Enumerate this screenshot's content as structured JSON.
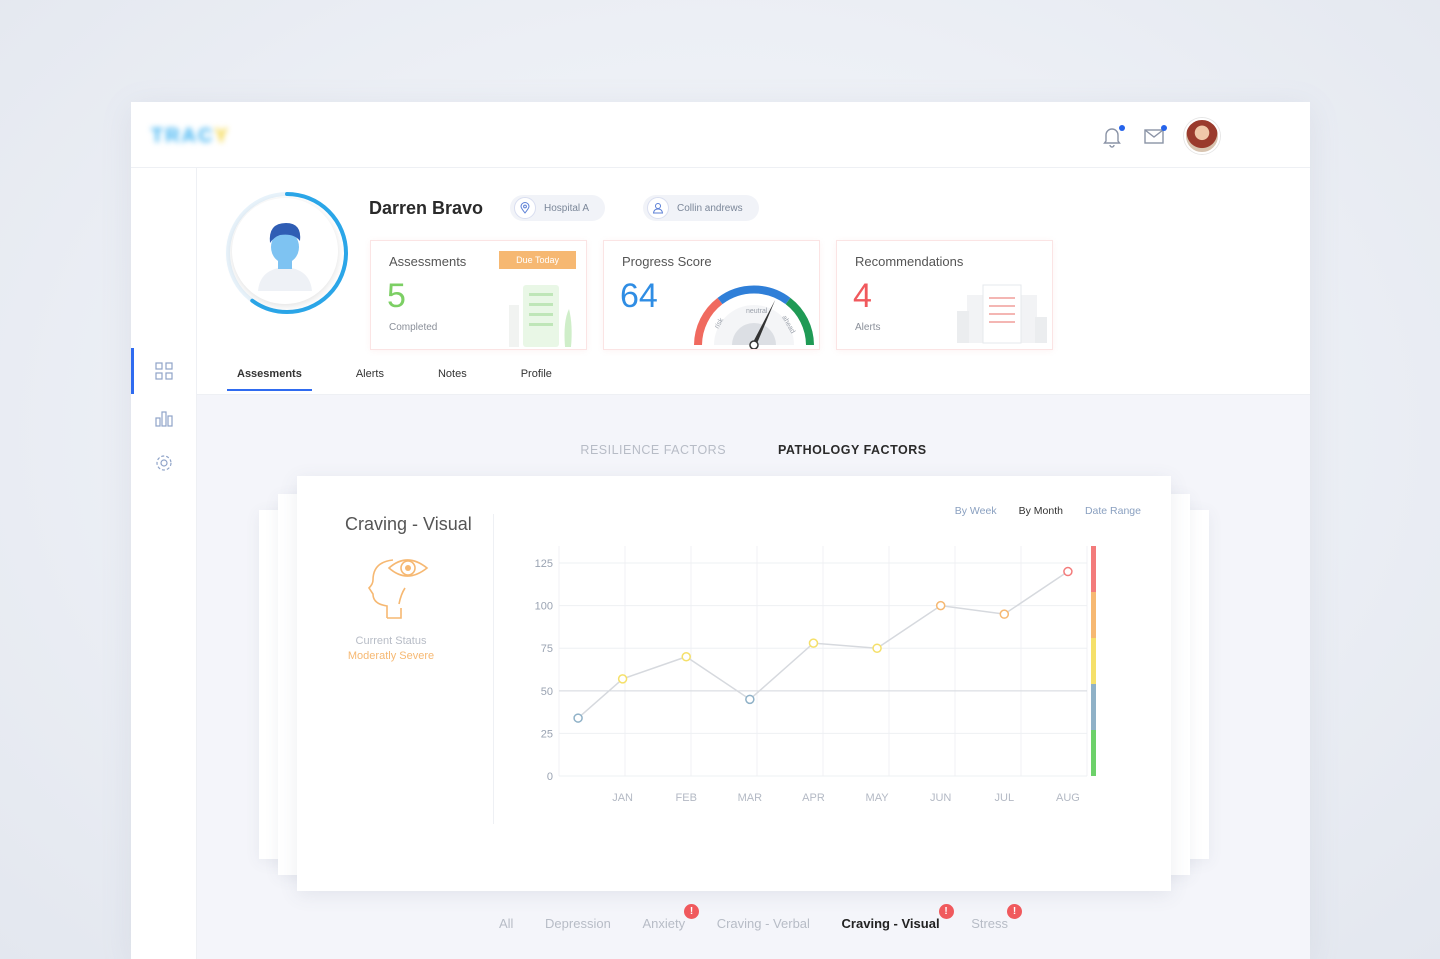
{
  "app": {
    "logo_text": "TRAC",
    "logo_accent": "Y"
  },
  "topbar": {
    "icons": [
      "bell-icon",
      "mail-icon",
      "user-avatar"
    ],
    "accent": "#2563eb"
  },
  "sidebar": {
    "items": [
      {
        "icon": "dashboard-grid-icon",
        "active": true
      },
      {
        "icon": "bar-chart-icon",
        "active": false
      },
      {
        "icon": "settings-gear-icon",
        "active": false
      }
    ]
  },
  "profile": {
    "name": "Darren Bravo",
    "location": "Hospital A",
    "clinician": "Collin andrews",
    "progress_ring_fraction": 0.6
  },
  "cards": {
    "assessments": {
      "title": "Assessments",
      "badge": "Due Today",
      "value": "5",
      "sub": "Completed",
      "color": "#7ccf64"
    },
    "progress": {
      "title": "Progress Score",
      "value": "64",
      "gauge_labels": [
        "risk",
        "neutral",
        "ahead"
      ],
      "color": "#2f8de4"
    },
    "recommendations": {
      "title": "Recommendations",
      "value": "4",
      "sub": "Alerts",
      "color": "#f0595d"
    }
  },
  "tabs": [
    "Assesments",
    "Alerts",
    "Notes",
    "Profile"
  ],
  "factor_tabs": {
    "items": [
      "RESILIENCE FACTORS",
      "PATHOLOGY FACTORS"
    ],
    "active": 1
  },
  "chart_panel": {
    "title": "Craving - Visual",
    "icon": "head-eye-icon",
    "status_label": "Current Status",
    "status_value": "Moderatly Severe",
    "ranges": [
      "By Week",
      "By Month",
      "Date Range"
    ],
    "active_range": "By Month"
  },
  "chart_data": {
    "type": "line",
    "title": "",
    "xlabel": "",
    "ylabel": "",
    "categories": [
      "JAN",
      "FEB",
      "MAR",
      "APR",
      "MAY",
      "JUN",
      "JUL",
      "AUG"
    ],
    "x": [
      0.3,
      1.0,
      2.0,
      3.0,
      4.0,
      5.0,
      6.0,
      7.0,
      8.0
    ],
    "y": [
      34,
      57,
      70,
      45,
      78,
      75,
      100,
      95,
      120
    ],
    "yticks": [
      0,
      25,
      50,
      75,
      100,
      125
    ],
    "ylim": [
      0,
      135
    ],
    "reference_line": 50,
    "grid": true,
    "severity_bar_colors": [
      "#f37b7b",
      "#f6b872",
      "#f5e06a",
      "#8fb1c7",
      "#6dd16a"
    ]
  },
  "categories_bar": {
    "items": [
      {
        "label": "All",
        "alert": false
      },
      {
        "label": "Depression",
        "alert": false
      },
      {
        "label": "Anxiety",
        "alert": true
      },
      {
        "label": "Craving - Verbal",
        "alert": false
      },
      {
        "label": "Craving - Visual",
        "alert": true,
        "active": true
      },
      {
        "label": "Stress",
        "alert": true
      }
    ],
    "alert_mark": "!"
  }
}
